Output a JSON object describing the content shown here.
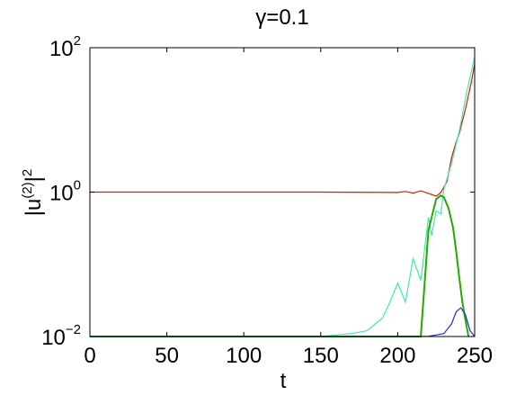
{
  "chart_data": {
    "type": "line",
    "title": "γ=0.1",
    "xlabel": "t",
    "ylabel": {
      "base": "|u",
      "sup": "(2)",
      "suffix": "|",
      "sup2": "2"
    },
    "xlim": [
      0,
      250
    ],
    "ylim": [
      0.01,
      100
    ],
    "yscale": "log",
    "grid": false,
    "x_ticks": [
      {
        "value": 0,
        "label": "0"
      },
      {
        "value": 50,
        "label": "50"
      },
      {
        "value": 100,
        "label": "100"
      },
      {
        "value": 150,
        "label": "150"
      },
      {
        "value": 200,
        "label": "200"
      },
      {
        "value": 250,
        "label": "250"
      }
    ],
    "y_ticks": [
      {
        "value": 0.01,
        "base": "10",
        "exp": "−2"
      },
      {
        "value": 1,
        "base": "10",
        "exp": "0"
      },
      {
        "value": 100,
        "base": "10",
        "exp": "2"
      }
    ],
    "series": [
      {
        "color": "#cc2200",
        "x": [
          0,
          150,
          200,
          205,
          210,
          215,
          220,
          225,
          228,
          232,
          235,
          238,
          240,
          244,
          248,
          250
        ],
        "y": [
          1.0,
          1.0,
          0.99,
          1.02,
          0.97,
          1.04,
          0.96,
          0.88,
          0.98,
          1.4,
          3.0,
          5.0,
          6.5,
          14,
          35,
          60
        ]
      },
      {
        "color": "#40e8b0",
        "x": [
          0,
          150,
          170,
          180,
          190,
          195,
          200,
          205,
          210,
          215,
          218,
          220,
          222,
          225,
          228,
          230,
          235,
          240,
          245,
          250
        ],
        "y": [
          0.01,
          0.01,
          0.011,
          0.012,
          0.018,
          0.03,
          0.055,
          0.03,
          0.12,
          0.06,
          0.2,
          0.45,
          0.25,
          0.55,
          0.5,
          1.1,
          2.5,
          7,
          25,
          75
        ]
      },
      {
        "color": "#22aa00",
        "x": [
          0,
          215,
          220,
          225,
          228,
          230,
          233,
          236,
          238,
          240,
          242,
          244,
          246
        ],
        "y": [
          0.0098,
          0.0098,
          0.3,
          0.8,
          0.9,
          0.85,
          0.6,
          0.32,
          0.15,
          0.065,
          0.03,
          0.017,
          0.0098
        ]
      },
      {
        "color": "#2233cc",
        "x": [
          0,
          200,
          210,
          220,
          225,
          230,
          235,
          238,
          241,
          244,
          247,
          250
        ],
        "y": [
          0.0098,
          0.0098,
          0.0099,
          0.0101,
          0.0105,
          0.011,
          0.015,
          0.022,
          0.025,
          0.02,
          0.012,
          0.0098
        ]
      }
    ]
  }
}
